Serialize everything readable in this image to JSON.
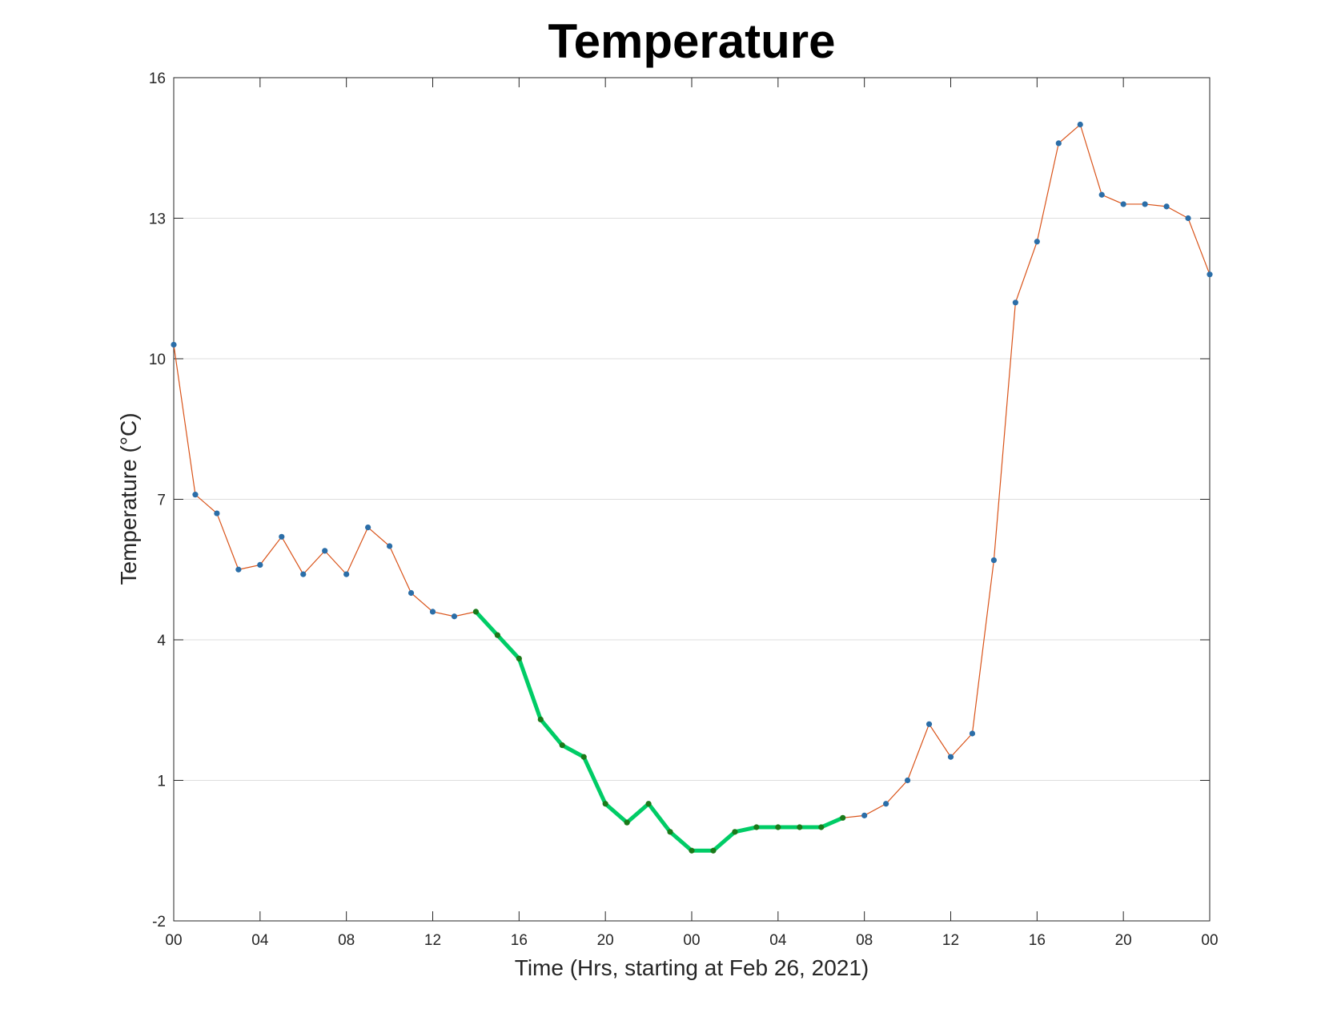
{
  "chart_data": {
    "type": "line",
    "title": "Temperature",
    "xlabel": "Time (Hrs, starting at Feb 26, 2021)",
    "ylabel": "Temperature (°C)",
    "x_unit": "hours",
    "xlim": [
      0,
      48
    ],
    "ylim": [
      -2,
      16
    ],
    "y_ticks": [
      -2,
      1,
      4,
      7,
      10,
      13,
      16
    ],
    "x_ticks": [
      0,
      4,
      8,
      12,
      16,
      20,
      24,
      28,
      32,
      36,
      40,
      44,
      48
    ],
    "x_tick_labels": [
      "00",
      "04",
      "08",
      "12",
      "16",
      "20",
      "00",
      "04",
      "08",
      "12",
      "16",
      "20",
      "00"
    ],
    "grid": "horizontal",
    "colors": {
      "line": "#d95319",
      "marker": "#2b6ea8",
      "highlight_line": "#00cc66",
      "highlight_marker": "#1a7a1a",
      "grid": "#dedede",
      "axis": "#262626"
    },
    "x": [
      0,
      1,
      2,
      3,
      4,
      5,
      6,
      7,
      8,
      9,
      10,
      11,
      12,
      13,
      14,
      15,
      16,
      17,
      18,
      19,
      20,
      21,
      22,
      23,
      24,
      25,
      26,
      27,
      28,
      29,
      30,
      31,
      32,
      33,
      34,
      35,
      36,
      37,
      38,
      39,
      40,
      41,
      42,
      43,
      44,
      45,
      46,
      47,
      48
    ],
    "y": [
      10.3,
      7.1,
      6.7,
      5.5,
      5.6,
      6.2,
      5.4,
      5.9,
      5.4,
      6.4,
      6.0,
      5.0,
      4.6,
      4.5,
      4.6,
      4.1,
      3.6,
      2.3,
      1.75,
      1.5,
      0.5,
      0.1,
      0.5,
      -0.1,
      -0.5,
      -0.5,
      -0.1,
      0.0,
      0.0,
      0.0,
      0.0,
      0.2,
      0.25,
      0.5,
      1.0,
      2.2,
      1.5,
      2.0,
      5.7,
      11.2,
      12.5,
      14.6,
      15.0,
      13.5,
      13.3,
      13.3,
      13.25,
      13.0,
      11.8
    ],
    "highlight_range": [
      14,
      31
    ]
  }
}
